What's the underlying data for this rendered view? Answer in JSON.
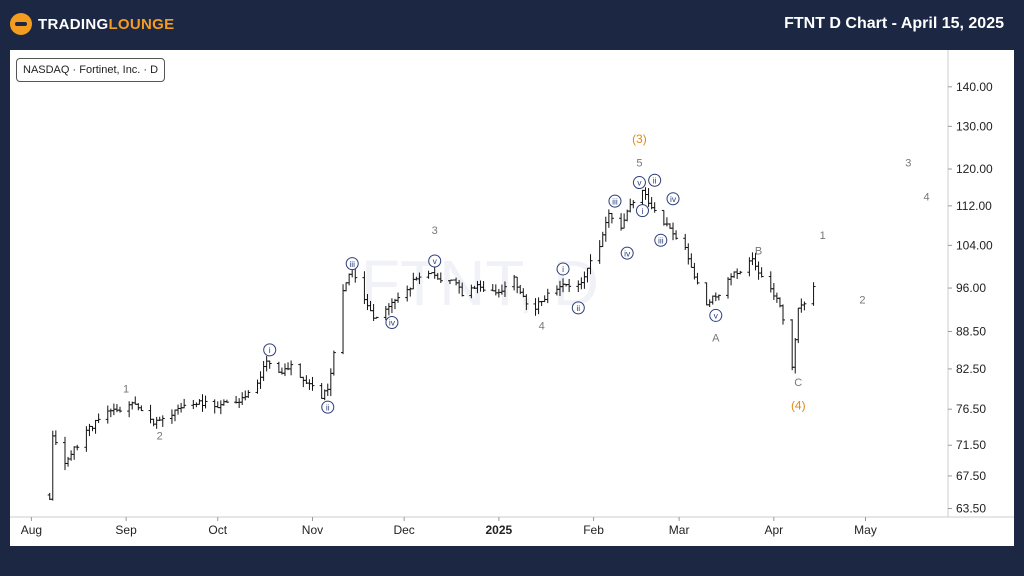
{
  "header": {
    "logo_text_a": "TRADING",
    "logo_text_b": "LOUNGE",
    "title": "FTNT D Chart - April 15, 2025"
  },
  "legend": "NASDAQ · Fortinet, Inc. · D",
  "watermark": "FTNT, D",
  "colors": {
    "background": "#1c2744",
    "accent": "#f39c1f",
    "wave_circle": "#2c3e7a",
    "bars": "#111111"
  },
  "chart_data": {
    "type": "ohlc",
    "x_range": [
      "2024-07-25",
      "2025-05-28"
    ],
    "y_scale": "log",
    "ylim": [
      62.5,
      150
    ],
    "y_ticks": [
      "140.00",
      "130.00",
      "120.00",
      "112.00",
      "104.00",
      "96.00",
      "88.50",
      "82.50",
      "76.50",
      "71.50",
      "67.50",
      "63.50"
    ],
    "x_ticks": [
      {
        "label": "Aug",
        "date": "2024-08-01",
        "bold": false
      },
      {
        "label": "Sep",
        "date": "2024-09-01",
        "bold": false
      },
      {
        "label": "Oct",
        "date": "2024-10-01",
        "bold": false
      },
      {
        "label": "Nov",
        "date": "2024-11-01",
        "bold": false
      },
      {
        "label": "Dec",
        "date": "2024-12-01",
        "bold": false
      },
      {
        "label": "2025",
        "date": "2025-01-01",
        "bold": true
      },
      {
        "label": "Feb",
        "date": "2025-02-01",
        "bold": false
      },
      {
        "label": "Mar",
        "date": "2025-03-01",
        "bold": false
      },
      {
        "label": "Apr",
        "date": "2025-04-01",
        "bold": false
      },
      {
        "label": "May",
        "date": "2025-05-01",
        "bold": false
      }
    ],
    "price_path": [
      [
        "2024-08-07",
        64.5
      ],
      [
        "2024-08-08",
        73
      ],
      [
        "2024-08-12",
        69
      ],
      [
        "2024-08-15",
        71
      ],
      [
        "2024-08-19",
        73.5
      ],
      [
        "2024-08-26",
        76
      ],
      [
        "2024-08-30",
        76.5
      ],
      [
        "2024-09-03",
        77.5
      ],
      [
        "2024-09-06",
        76
      ],
      [
        "2024-09-11",
        74.5
      ],
      [
        "2024-09-16",
        76
      ],
      [
        "2024-09-20",
        77
      ],
      [
        "2024-09-25",
        77.5
      ],
      [
        "2024-09-30",
        77
      ],
      [
        "2024-10-04",
        77.5
      ],
      [
        "2024-10-09",
        78
      ],
      [
        "2024-10-14",
        80
      ],
      [
        "2024-10-17",
        84
      ],
      [
        "2024-10-21",
        82
      ],
      [
        "2024-10-25",
        83
      ],
      [
        "2024-10-29",
        81
      ],
      [
        "2024-11-04",
        78.5
      ],
      [
        "2024-11-06",
        79
      ],
      [
        "2024-11-08",
        85
      ],
      [
        "2024-11-11",
        96
      ],
      [
        "2024-11-14",
        99.5
      ],
      [
        "2024-11-18",
        94
      ],
      [
        "2024-11-21",
        91
      ],
      [
        "2024-11-26",
        93
      ],
      [
        "2024-11-29",
        94
      ],
      [
        "2024-12-04",
        97
      ],
      [
        "2024-12-09",
        99
      ],
      [
        "2024-12-13",
        97
      ],
      [
        "2024-12-18",
        97.5
      ],
      [
        "2024-12-20",
        95
      ],
      [
        "2024-12-26",
        96.5
      ],
      [
        "2024-12-31",
        95
      ],
      [
        "2025-01-06",
        98
      ],
      [
        "2025-01-09",
        94
      ],
      [
        "2025-01-13",
        92.5
      ],
      [
        "2025-01-17",
        95
      ],
      [
        "2025-01-22",
        97
      ],
      [
        "2025-01-24",
        96
      ],
      [
        "2025-01-28",
        97.5
      ],
      [
        "2025-02-03",
        104
      ],
      [
        "2025-02-06",
        110
      ],
      [
        "2025-02-10",
        107
      ],
      [
        "2025-02-13",
        112
      ],
      [
        "2025-02-17",
        115
      ],
      [
        "2025-02-20",
        112
      ],
      [
        "2025-02-25",
        108
      ],
      [
        "2025-03-03",
        103
      ],
      [
        "2025-03-06",
        98
      ],
      [
        "2025-03-10",
        93
      ],
      [
        "2025-03-14",
        95
      ],
      [
        "2025-03-18",
        98
      ],
      [
        "2025-03-25",
        101
      ],
      [
        "2025-03-28",
        98
      ],
      [
        "2025-04-03",
        93
      ],
      [
        "2025-04-07",
        82.5
      ],
      [
        "2025-04-09",
        92
      ],
      [
        "2025-04-14",
        96
      ]
    ],
    "wave_labels": [
      {
        "text": "1",
        "date": "2024-09-01",
        "price": 79.5,
        "kind": "plain"
      },
      {
        "text": "2",
        "date": "2024-09-12",
        "price": 72.8,
        "kind": "plain"
      },
      {
        "text": "i",
        "date": "2024-10-18",
        "price": 85.5,
        "kind": "circle"
      },
      {
        "text": "ii",
        "date": "2024-11-06",
        "price": 76.8,
        "kind": "circle"
      },
      {
        "text": "iii",
        "date": "2024-11-14",
        "price": 100.5,
        "kind": "circle"
      },
      {
        "text": "iv",
        "date": "2024-11-27",
        "price": 90,
        "kind": "circle"
      },
      {
        "text": "v",
        "date": "2024-12-11",
        "price": 101,
        "kind": "circle"
      },
      {
        "text": "3",
        "date": "2024-12-11",
        "price": 107,
        "kind": "plain"
      },
      {
        "text": "4",
        "date": "2025-01-15",
        "price": 89.5,
        "kind": "plain"
      },
      {
        "text": "i",
        "date": "2025-01-22",
        "price": 99.5,
        "kind": "circle"
      },
      {
        "text": "ii",
        "date": "2025-01-27",
        "price": 92.5,
        "kind": "circle"
      },
      {
        "text": "iii",
        "date": "2025-02-08",
        "price": 113,
        "kind": "circle"
      },
      {
        "text": "iv",
        "date": "2025-02-12",
        "price": 102.5,
        "kind": "circle"
      },
      {
        "text": "v",
        "date": "2025-02-16",
        "price": 117,
        "kind": "circle"
      },
      {
        "text": "5",
        "date": "2025-02-16",
        "price": 121.5,
        "kind": "plain"
      },
      {
        "text": "(3)",
        "date": "2025-02-16",
        "price": 127,
        "kind": "orange"
      },
      {
        "text": "i",
        "date": "2025-02-17",
        "price": 111,
        "kind": "circle"
      },
      {
        "text": "ii",
        "date": "2025-02-21",
        "price": 117.5,
        "kind": "circle"
      },
      {
        "text": "iii",
        "date": "2025-02-23",
        "price": 105,
        "kind": "circle"
      },
      {
        "text": "iv",
        "date": "2025-02-27",
        "price": 113.5,
        "kind": "circle"
      },
      {
        "text": "v",
        "date": "2025-03-13",
        "price": 91.2,
        "kind": "circle"
      },
      {
        "text": "A",
        "date": "2025-03-13",
        "price": 87.5,
        "kind": "plain"
      },
      {
        "text": "B",
        "date": "2025-03-27",
        "price": 103,
        "kind": "plain"
      },
      {
        "text": "C",
        "date": "2025-04-09",
        "price": 80.5,
        "kind": "plain"
      },
      {
        "text": "(4)",
        "date": "2025-04-09",
        "price": 77,
        "kind": "orange"
      },
      {
        "text": "1",
        "date": "2025-04-17",
        "price": 106,
        "kind": "plain"
      },
      {
        "text": "2",
        "date": "2025-04-30",
        "price": 94,
        "kind": "plain"
      },
      {
        "text": "3",
        "date": "2025-05-15",
        "price": 121.5,
        "kind": "plain"
      },
      {
        "text": "4",
        "date": "2025-05-21",
        "price": 114,
        "kind": "plain"
      }
    ]
  }
}
